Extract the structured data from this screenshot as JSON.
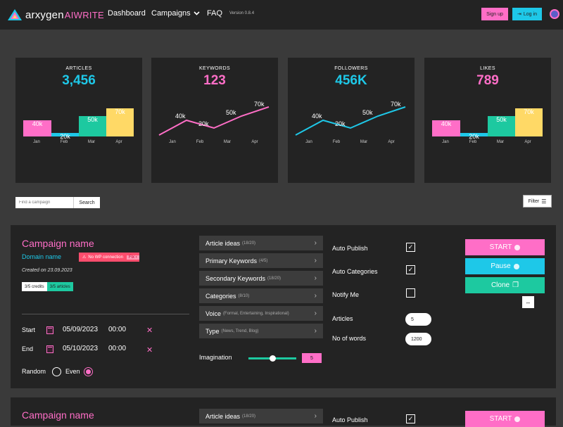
{
  "nav": {
    "logo_word": "arxygen",
    "logo_ai": "AIWRITE",
    "links": [
      "Dashboard",
      "Campaigns",
      "FAQ"
    ],
    "version": "Version 0.8.4",
    "signup": "Sign up",
    "login": "Log in"
  },
  "stats": [
    {
      "label": "ARTICLES",
      "value": "3,456",
      "color": "#1ec8e8",
      "kind": "bar"
    },
    {
      "label": "KEYWORDS",
      "value": "123",
      "color": "#ff6ec7",
      "kind": "line",
      "line_color": "#ff6ec7"
    },
    {
      "label": "FOLLOWERS",
      "value": "456K",
      "color": "#1ec8e8",
      "kind": "line",
      "line_color": "#1ec8e8"
    },
    {
      "label": "LIKES",
      "value": "789",
      "color": "#ff6ec7",
      "kind": "bar"
    }
  ],
  "chart_data": [
    {
      "type": "bar",
      "categories": [
        "Jan",
        "Feb",
        "Mar",
        "Apr"
      ],
      "values": [
        40,
        20,
        50,
        70
      ],
      "data_labels": [
        "40k",
        "20k",
        "50k",
        "70k"
      ],
      "colors": [
        "#ff6ec7",
        "#1ec8e8",
        "#1dc9a0",
        "#ffd966"
      ]
    },
    {
      "type": "line",
      "categories": [
        "Jan",
        "Feb",
        "Mar",
        "Apr"
      ],
      "values": [
        40,
        20,
        50,
        70
      ],
      "data_labels": [
        "40k",
        "20k",
        "50k",
        "70k"
      ],
      "color": "#ff6ec7"
    },
    {
      "type": "line",
      "categories": [
        "Jan",
        "Feb",
        "Mar",
        "Apr"
      ],
      "values": [
        40,
        20,
        50,
        70
      ],
      "data_labels": [
        "40k",
        "20k",
        "50k",
        "70k"
      ],
      "color": "#1ec8e8"
    },
    {
      "type": "bar",
      "categories": [
        "Jan",
        "Feb",
        "Mar",
        "Apr"
      ],
      "values": [
        40,
        20,
        50,
        70
      ],
      "data_labels": [
        "40k",
        "20k",
        "50k",
        "70k"
      ],
      "colors": [
        "#ff6ec7",
        "#1ec8e8",
        "#1dc9a0",
        "#ffd966"
      ]
    }
  ],
  "search": {
    "placeholder": "Find a campaign",
    "button": "Search"
  },
  "filter": {
    "label": "Filter"
  },
  "campaign": {
    "name": "Campaign name",
    "domain": "Domain name",
    "wp_warning": "No WP connection",
    "fix": "Fix ›",
    "created": "Created on 23.09.2023",
    "credits": "3/5 credits",
    "articles": "3/5 articles",
    "start_label": "Start",
    "start_date": "05/09/2023",
    "start_time": "00:00",
    "end_label": "End",
    "end_date": "05/10/2023",
    "end_time": "00:00",
    "random_label": "Random",
    "even_label": "Even",
    "options": [
      {
        "label": "Article ideas",
        "sub": "(18/20)"
      },
      {
        "label": "Primary Keywords",
        "sub": "(4/5)"
      },
      {
        "label": "Secondary Keywords",
        "sub": "(18/20)"
      },
      {
        "label": "Categories",
        "sub": "(8/10)"
      },
      {
        "label": "Voice",
        "sub": "(Formal, Entertaining, Inspirational)"
      },
      {
        "label": "Type",
        "sub": "(News, Trend, Blog)"
      }
    ],
    "imagination_label": "Imagination",
    "imagination_value": "5",
    "auto_publish": "Auto Publish",
    "auto_categories": "Auto Categories",
    "notify_me": "Notify Me",
    "articles_label": "Articles",
    "articles_value": "5",
    "words_label": "No of words",
    "words_value": "1200",
    "start_btn": "START",
    "pause_btn": "Pause",
    "clone_btn": "Clone",
    "expand_btn": "↔"
  },
  "campaign2": {
    "name": "Campaign name",
    "option0": "Article ideas",
    "option0_sub": "(18/20)",
    "auto_publish": "Auto Publish",
    "start_btn": "START"
  }
}
